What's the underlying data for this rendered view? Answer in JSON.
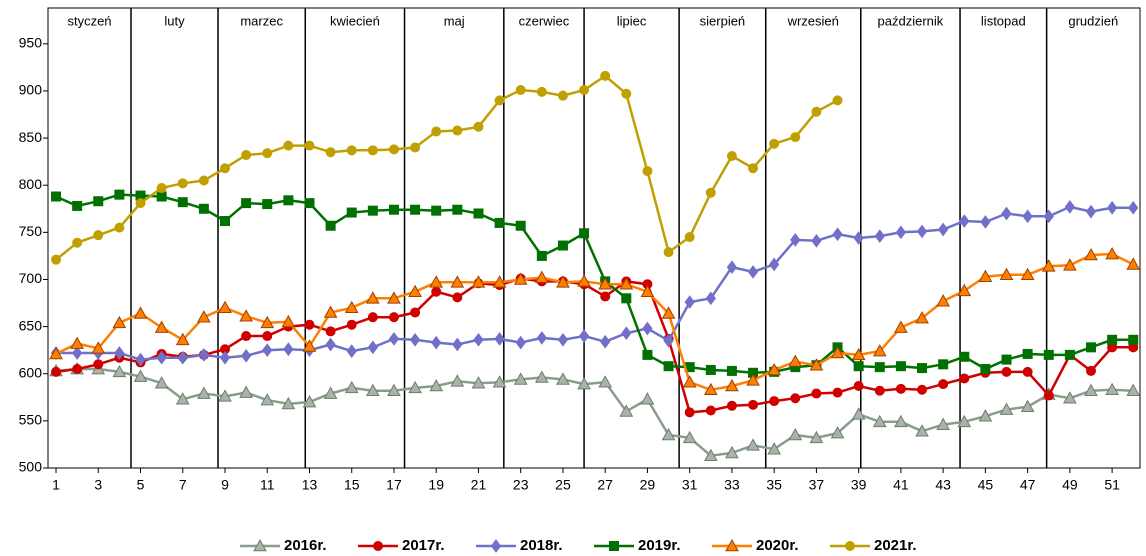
{
  "chart_data": {
    "type": "line",
    "x": [
      1,
      2,
      3,
      4,
      5,
      6,
      7,
      8,
      9,
      10,
      11,
      12,
      13,
      14,
      15,
      16,
      17,
      18,
      19,
      20,
      21,
      22,
      23,
      24,
      25,
      26,
      27,
      28,
      29,
      30,
      31,
      32,
      33,
      34,
      35,
      36,
      37,
      38,
      39,
      40,
      41,
      42,
      43,
      44,
      45,
      46,
      47,
      48,
      49,
      50,
      51,
      52
    ],
    "xlim": [
      0.62,
      52.32
    ],
    "xticks": [
      1,
      3,
      5,
      7,
      9,
      11,
      13,
      15,
      17,
      19,
      21,
      23,
      25,
      27,
      29,
      31,
      33,
      35,
      37,
      39,
      41,
      43,
      45,
      47,
      49,
      51
    ],
    "ylim": [
      500,
      988
    ],
    "yticks": [
      500,
      550,
      600,
      650,
      700,
      750,
      800,
      850,
      900,
      950
    ],
    "months": [
      "styczeń",
      "luty",
      "marzec",
      "kwiecień",
      "maj",
      "czerwiec",
      "lipiec",
      "sierpień",
      "wrzesień",
      "październik",
      "listopad",
      "grudzień"
    ],
    "month_separators": [
      4.55,
      8.67,
      12.8,
      17.5,
      22.2,
      26.0,
      30.5,
      34.6,
      39.1,
      43.8,
      47.9
    ],
    "series": [
      {
        "name": "2016r.",
        "color": "#8c9c8c",
        "marker": "triangle",
        "values": [
          603,
          605,
          605,
          602,
          597,
          590,
          573,
          579,
          576,
          580,
          572,
          568,
          570,
          579,
          585,
          582,
          582,
          585,
          587,
          592,
          590,
          591,
          594,
          596,
          594,
          589,
          591,
          560,
          573,
          535,
          532,
          513,
          516,
          524,
          520,
          535,
          532,
          537,
          557,
          549,
          549,
          539,
          546,
          549,
          555,
          562,
          565,
          578,
          574,
          582,
          583,
          582
        ]
      },
      {
        "name": "2017r.",
        "color": "#d00000",
        "marker": "circle",
        "values": [
          602,
          605,
          610,
          617,
          612,
          621,
          618,
          620,
          626,
          640,
          640,
          650,
          652,
          645,
          652,
          660,
          660,
          665,
          687,
          681,
          696,
          694,
          701,
          698,
          698,
          695,
          682,
          698,
          695,
          637,
          559,
          561,
          566,
          567,
          571,
          574,
          579,
          580,
          587,
          582,
          584,
          583,
          589,
          595,
          601,
          602,
          602,
          577,
          620,
          603,
          628,
          628
        ]
      },
      {
        "name": "2018r.",
        "color": "#7070c8",
        "marker": "diamond",
        "values": [
          622,
          622,
          622,
          622,
          615,
          617,
          617,
          620,
          617,
          619,
          625,
          626,
          625,
          631,
          624,
          628,
          637,
          636,
          633,
          631,
          636,
          637,
          633,
          638,
          636,
          640,
          634,
          643,
          648,
          635,
          676,
          680,
          713,
          708,
          716,
          742,
          741,
          748,
          744,
          746,
          750,
          751,
          753,
          762,
          761,
          770,
          767,
          767,
          777,
          772,
          776,
          776
        ]
      },
      {
        "name": "2019r.",
        "color": "#007000",
        "marker": "square",
        "values": [
          788,
          778,
          783,
          790,
          789,
          788,
          782,
          775,
          762,
          781,
          780,
          784,
          781,
          757,
          771,
          773,
          774,
          774,
          773,
          774,
          770,
          760,
          757,
          725,
          736,
          749,
          698,
          680,
          620,
          608,
          607,
          604,
          603,
          601,
          602,
          607,
          609,
          628,
          608,
          607,
          608,
          606,
          610,
          618,
          605,
          615,
          621,
          620,
          620,
          628,
          636,
          636
        ]
      },
      {
        "name": "2020r.",
        "color": "#ff7f00",
        "marker": "triangle",
        "values": [
          621,
          632,
          627,
          654,
          664,
          649,
          636,
          660,
          670,
          661,
          654,
          655,
          629,
          665,
          670,
          680,
          680,
          687,
          697,
          697,
          697,
          697,
          700,
          702,
          697,
          698,
          695,
          695,
          687,
          664,
          591,
          583,
          587,
          593,
          604,
          613,
          609,
          622,
          620,
          624,
          649,
          659,
          677,
          688,
          703,
          705,
          705,
          714,
          715,
          726,
          727,
          716
        ]
      },
      {
        "name": "2021r.",
        "color": "#c0a000",
        "marker": "circle",
        "values": [
          721,
          739,
          747,
          755,
          781,
          797,
          802,
          805,
          818,
          832,
          834,
          842,
          842,
          835,
          837,
          837,
          838,
          840,
          857,
          858,
          862,
          890,
          901,
          899,
          895,
          901,
          916,
          897,
          815,
          729,
          745,
          792,
          831,
          818,
          844,
          851,
          878,
          890,
          null,
          null,
          null,
          null,
          null,
          null,
          null,
          null,
          null,
          null,
          null,
          null,
          null,
          null
        ]
      }
    ]
  }
}
